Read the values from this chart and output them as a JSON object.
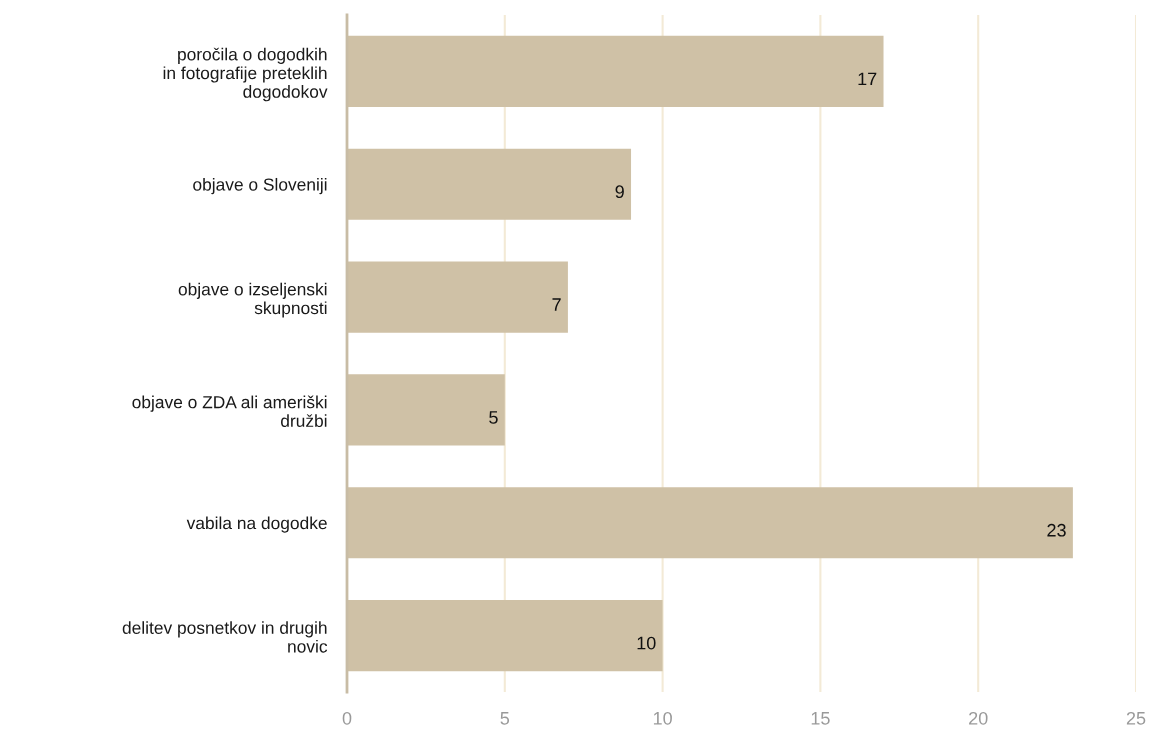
{
  "chart_data": {
    "type": "bar",
    "orientation": "horizontal",
    "categories": [
      "poročila o dogodkih\nin fotografije preteklih\ndogodokov",
      "objave o Sloveniji",
      "objave o izseljenski\nskupnosti",
      "objave o ZDA ali ameriški\ndružbi",
      "vabila na dogodke",
      "delitev posnetkov in drugih\nnovic"
    ],
    "values": [
      17,
      9,
      7,
      5,
      23,
      10
    ],
    "color": "#cfc1a6",
    "xlim": [
      0,
      25
    ],
    "xticks": [
      0,
      5,
      10,
      15,
      20,
      25
    ],
    "grid": "x",
    "data_labels": true
  }
}
